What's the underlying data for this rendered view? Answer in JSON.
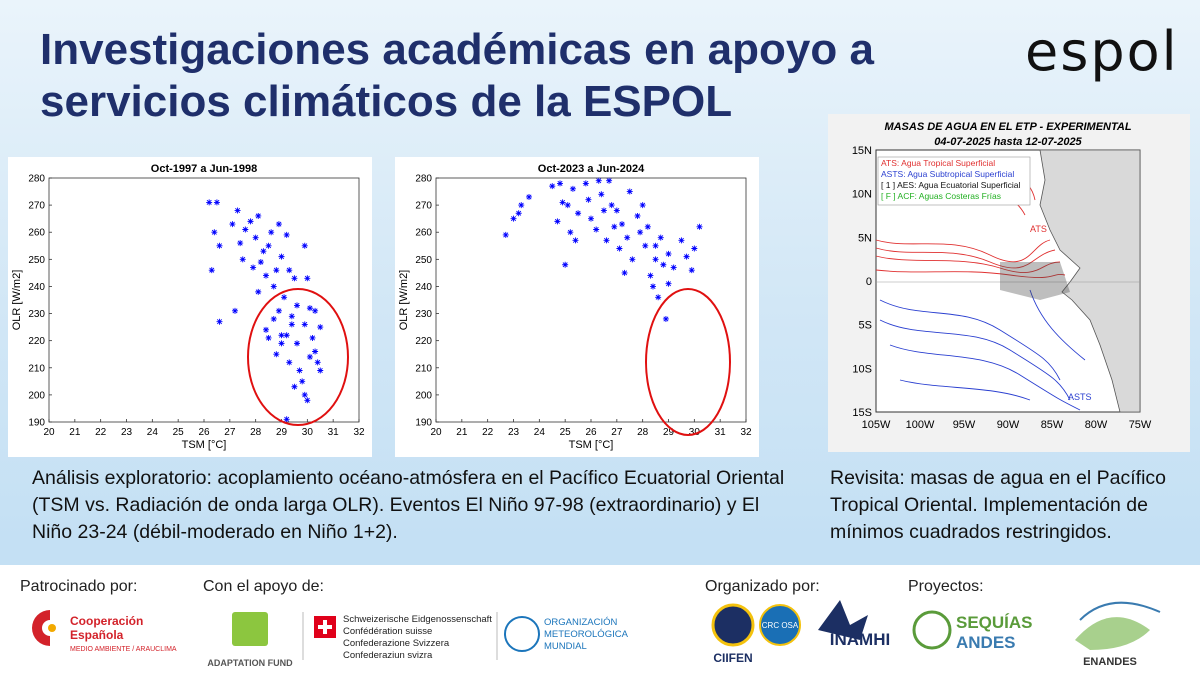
{
  "header": {
    "title": [
      "Investigaciones académicas en apoyo a",
      "servicios climáticos de la ESPOL"
    ],
    "logo": "espol"
  },
  "chart_data": [
    {
      "type": "scatter",
      "title": "Oct-1997 a Jun-1998",
      "x_label": "TSM [°C]",
      "y_label": "OLR [W/m2]",
      "color": "#0000ff",
      "xlim": [
        20,
        32
      ],
      "ylim": [
        190,
        280
      ],
      "xticks": [
        20,
        21,
        22,
        23,
        24,
        25,
        26,
        27,
        28,
        29,
        30,
        31,
        32
      ],
      "yticks": [
        190,
        200,
        210,
        220,
        230,
        240,
        250,
        260,
        270,
        280
      ],
      "x": [
        26.2,
        26.5,
        26.4,
        26.6,
        26.3,
        26.6,
        27.3,
        27.1,
        27.6,
        27.4,
        27.8,
        27.5,
        27.9,
        27.2,
        28.1,
        28.0,
        28.3,
        28.5,
        28.6,
        28.2,
        28.4,
        28.7,
        28.1,
        28.4,
        28.9,
        28.8,
        29.2,
        29.0,
        29.3,
        29.5,
        29.1,
        28.9,
        29.4,
        29.2,
        29.0,
        28.8,
        29.6,
        29.3,
        29.7,
        29.9,
        30.0,
        30.1,
        29.9,
        30.2,
        30.1,
        29.8,
        30.0,
        30.3,
        30.4,
        30.5,
        30.3,
        30.5,
        29.5,
        29.4,
        29.6,
        28.7,
        29.2,
        29.9,
        28.5,
        29.0
      ],
      "values": [
        271,
        271,
        260,
        255,
        246,
        227,
        268,
        263,
        261,
        256,
        264,
        250,
        247,
        231,
        266,
        258,
        253,
        255,
        260,
        249,
        244,
        240,
        238,
        224,
        263,
        246,
        259,
        251,
        246,
        243,
        236,
        231,
        229,
        222,
        219,
        215,
        219,
        212,
        209,
        255,
        243,
        232,
        226,
        221,
        214,
        205,
        198,
        216,
        212,
        209,
        231,
        225,
        203,
        226,
        233,
        228,
        191,
        200,
        221,
        222
      ]
    },
    {
      "type": "scatter",
      "title": "Oct-2023 a Jun-2024",
      "x_label": "TSM [°C]",
      "y_label": "OLR [W/m2]",
      "color": "#0000ff",
      "xlim": [
        20,
        32
      ],
      "ylim": [
        190,
        280
      ],
      "xticks": [
        20,
        21,
        22,
        23,
        24,
        25,
        26,
        27,
        28,
        29,
        30,
        31,
        32
      ],
      "yticks": [
        190,
        200,
        210,
        220,
        230,
        240,
        250,
        260,
        270,
        280
      ],
      "x": [
        22.7,
        23.0,
        23.2,
        23.3,
        23.6,
        24.5,
        24.8,
        24.9,
        24.7,
        25.1,
        25.3,
        25.5,
        25.2,
        25.4,
        25.0,
        25.8,
        25.9,
        26.0,
        26.2,
        26.4,
        26.5,
        26.7,
        26.8,
        26.9,
        26.6,
        27.0,
        27.2,
        27.1,
        27.4,
        27.6,
        27.3,
        27.8,
        27.9,
        28.0,
        28.2,
        28.1,
        28.3,
        28.5,
        28.4,
        28.6,
        28.7,
        28.8,
        29.0,
        29.2,
        29.0,
        29.5,
        29.7,
        29.9,
        30.2,
        30.0,
        28.9,
        28.5,
        27.5,
        26.3
      ],
      "values": [
        259,
        265,
        267,
        270,
        273,
        277,
        278,
        271,
        264,
        270,
        276,
        267,
        260,
        257,
        248,
        278,
        272,
        265,
        261,
        274,
        268,
        279,
        270,
        262,
        257,
        268,
        263,
        254,
        258,
        250,
        245,
        266,
        260,
        270,
        262,
        255,
        244,
        250,
        240,
        236,
        258,
        248,
        252,
        247,
        241,
        257,
        251,
        246,
        262,
        254,
        228,
        255,
        275,
        279
      ]
    }
  ],
  "map": {
    "title": "MASAS DE AGUA EN EL ETP - EXPERIMENTAL",
    "subtitle": "04-07-2025 hasta 12-07-2025",
    "legend": [
      "ATS: Agua Tropical Superficial",
      "ASTS: Agua Subtropical Superficial",
      "[ 1 ] AES: Agua Ecuatorial Superficial",
      "[ F ] ACF: Aguas Costeras Frías"
    ],
    "lat_labels": [
      "15N",
      "10N",
      "5N",
      "0",
      "5S",
      "10S",
      "15S"
    ],
    "lon_labels": [
      "105W",
      "100W",
      "95W",
      "90W",
      "85W",
      "80W",
      "75W"
    ],
    "annotations": [
      "ATS",
      "ASTS"
    ]
  },
  "captions": {
    "left": "Análisis exploratorio: acoplamiento océano-atmósfera en el Pacífico Ecuatorial Oriental (TSM vs. Radiación de onda larga OLR). Eventos El Niño 97-98 (extraordinario) y El Niño 23-24 (débil-moderado en Niño 1+2).",
    "right": "Revisita: masas de agua en el Pacífico Tropical Oriental. Implementación de mínimos cuadrados restringidos."
  },
  "footer": {
    "sponsored_label": "Patrocinado por:",
    "support_label": "Con el apoyo de:",
    "organized_label": "Organizado por:",
    "projects_label": "Proyectos:",
    "cooperacion": [
      "Cooperación",
      "Española",
      "MEDIO AMBIENTE / ARAUCLIMA"
    ],
    "adaptation_fund": "ADAPTATION FUND",
    "swiss": [
      "Schweizerische Eidgenossenschaft",
      "Confédération suisse",
      "Confederazione Svizzera",
      "Confederaziun svizra"
    ],
    "wmo": [
      "ORGANIZACIÓN",
      "METEOROLÓGICA",
      "MUNDIAL"
    ],
    "ciifen": "CIIFEN",
    "crc_osa": "CRC OSA",
    "inamhi": "INAMHI",
    "sequias": [
      "SEQUÍAS",
      "ANDES"
    ],
    "enandes": "ENANDES"
  }
}
